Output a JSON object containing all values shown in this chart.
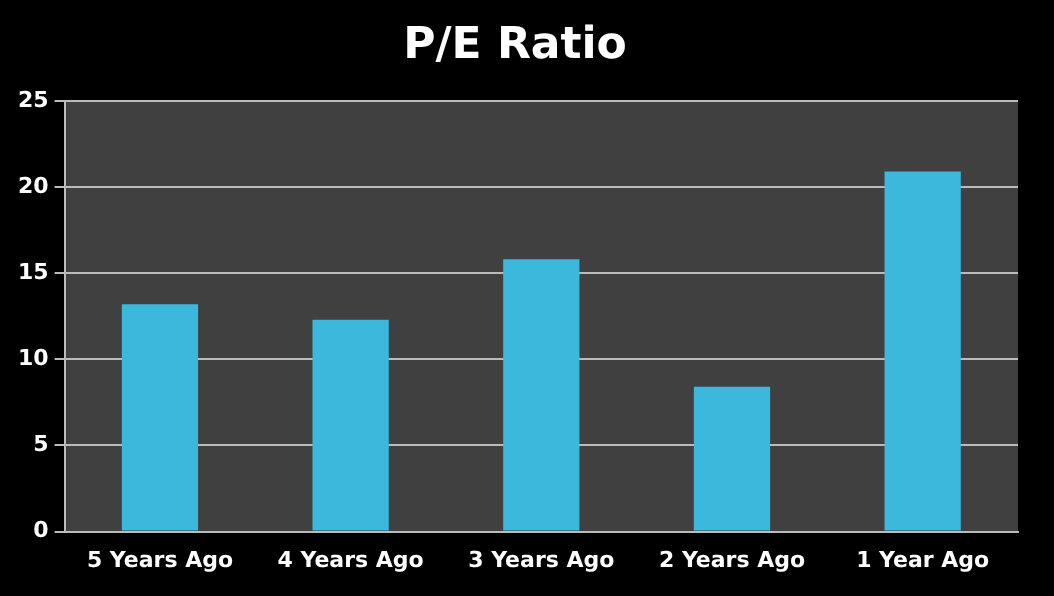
{
  "chart_data": {
    "type": "bar",
    "title": "P/E Ratio",
    "categories": [
      "5 Years Ago",
      "4 Years Ago",
      "3 Years Ago",
      "2 Years Ago",
      "1 Year Ago"
    ],
    "values": [
      13.2,
      12.3,
      15.8,
      8.4,
      20.9
    ],
    "color": "#3bb8dc",
    "ylim": [
      0,
      25
    ],
    "yticks": [
      0,
      5,
      10,
      15,
      20,
      25
    ],
    "grid": "y",
    "legend": false
  }
}
